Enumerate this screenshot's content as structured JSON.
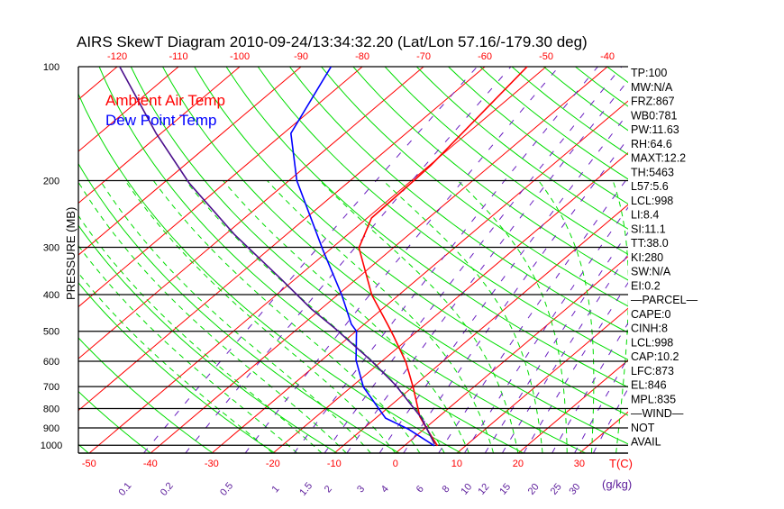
{
  "chart_data": {
    "type": "line",
    "title": "AIRS SkewT Diagram 2010-09-24/13:34:32.20 (Lat/Lon 57.16/-179.30 deg)",
    "ylabel": "PRESSURE (MB)",
    "xlabel": "T(C)",
    "mixing_ratio_unit_label": "(g/kg)",
    "pressure_range": [
      1050,
      100
    ],
    "pressure_ticks": [
      100,
      200,
      300,
      400,
      500,
      600,
      700,
      800,
      900,
      1000
    ],
    "top_temp_ticks": [
      -120,
      -110,
      -100,
      -90,
      -80,
      -70,
      -60,
      -50,
      -40
    ],
    "bottom_temp_ticks": [
      -50,
      -40,
      -30,
      -20,
      -10,
      0,
      10,
      20,
      30
    ],
    "mixing_ratio_ticks": [
      "0.1",
      "0.2",
      "0.5",
      "1",
      "1.5",
      "2",
      "3",
      "4",
      "6",
      "8",
      "10",
      "12",
      "15",
      "20",
      "25",
      "30"
    ],
    "legend": [
      {
        "label": "Ambient Air Temp",
        "color": "#ff0000"
      },
      {
        "label": "Dew Point Temp",
        "color": "#0000ff"
      }
    ],
    "series": [
      {
        "name": "Ambient Air Temp",
        "color": "#ff0000",
        "points": [
          [
            1003,
            5.4
          ],
          [
            907,
            0.5
          ],
          [
            840,
            -3.1
          ],
          [
            702,
            -9.9
          ],
          [
            603,
            -15.9
          ],
          [
            515,
            -22.9
          ],
          [
            479,
            -26.2
          ],
          [
            401,
            -34.4
          ],
          [
            301,
            -45.6
          ],
          [
            251,
            -49.3
          ],
          [
            200,
            -49.6
          ],
          [
            182,
            -49.8
          ],
          [
            100,
            -53.1
          ]
        ]
      },
      {
        "name": "Dew Point Temp",
        "color": "#0000ff",
        "points": [
          [
            1003,
            4.9
          ],
          [
            907,
            -2.5
          ],
          [
            848,
            -8.4
          ],
          [
            702,
            -18.0
          ],
          [
            596,
            -24.4
          ],
          [
            500,
            -29.9
          ],
          [
            479,
            -32.1
          ],
          [
            401,
            -39.3
          ],
          [
            304,
            -51.2
          ],
          [
            200,
            -68.7
          ],
          [
            150,
            -78.8
          ],
          [
            100,
            -85.1
          ]
        ]
      },
      {
        "name": "Parcel",
        "color": "#4b0f8c",
        "points": [
          [
            993,
            4.6
          ],
          [
            848,
            -2.5
          ],
          [
            694,
            -13.1
          ],
          [
            597,
            -21.9
          ],
          [
            491,
            -34.0
          ],
          [
            437,
            -41.5
          ],
          [
            365,
            -52.1
          ],
          [
            277,
            -68.6
          ],
          [
            203,
            -85.8
          ],
          [
            150,
            -100.8
          ],
          [
            100,
            -119.6
          ]
        ]
      }
    ],
    "indices": [
      "TP:100",
      "MW:N/A",
      "FRZ:867",
      "WB0:781",
      "PW:11.63",
      "RH:64.6",
      "MAXT:12.2",
      "TH:5463",
      "L57:5.6",
      "LCL:998",
      "LI:8.4",
      "SI:11.1",
      "TT:38.0",
      "KI:280",
      "SW:N/A",
      "EI:0.2",
      "—PARCEL—",
      "CAPE:0",
      "CINH:8",
      "LCL:998",
      "CAP:10.2",
      "LFC:873",
      "EL:846",
      "MPL:835",
      "—WIND—",
      "NOT",
      "AVAIL"
    ],
    "colors": {
      "isotherm": "#ff0000",
      "dry_adiabat": "#00dd00",
      "moist_adiabat": "#00dd00",
      "mixing_ratio": "#6a1fc0",
      "isobar": "#000000"
    }
  }
}
